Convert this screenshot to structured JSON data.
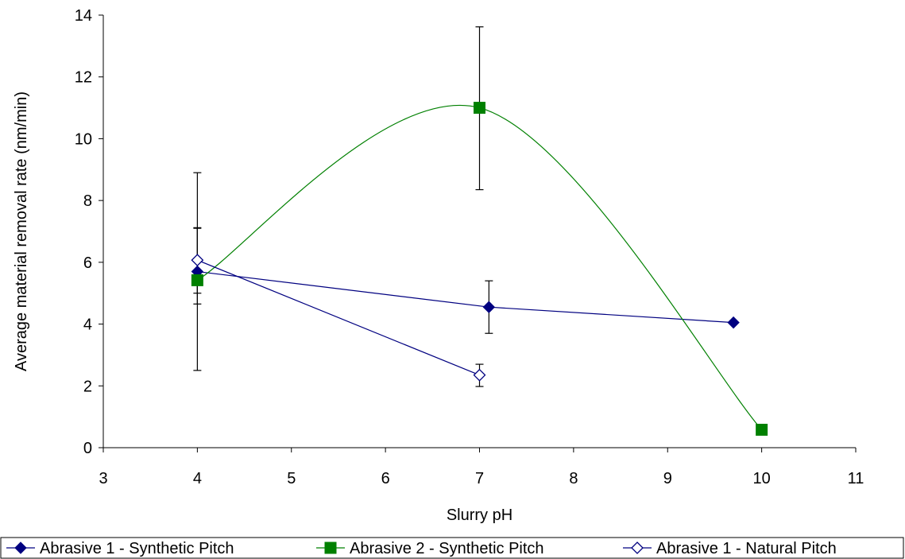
{
  "chart_data": {
    "type": "scatter",
    "title": "",
    "xlabel": "Slurry pH",
    "ylabel": "Average material removal rate (nm/min)",
    "xlim": [
      3,
      11
    ],
    "ylim": [
      0,
      14
    ],
    "xticks": [
      3,
      4,
      5,
      6,
      7,
      8,
      9,
      10,
      11
    ],
    "yticks": [
      0,
      2,
      4,
      6,
      8,
      10,
      12,
      14
    ],
    "grid": false,
    "legend_position": "bottom",
    "series": [
      {
        "name": "Abrasive 1 - Synthetic Pitch",
        "color": "#000080",
        "marker": "diamond-filled",
        "line": "straight",
        "points": [
          {
            "x": 4,
            "y": 5.7,
            "err_low": 4.65,
            "err_high": 7.12
          },
          {
            "x": 7.1,
            "y": 4.55,
            "err_low": 3.7,
            "err_high": 5.4
          },
          {
            "x": 9.7,
            "y": 4.05
          }
        ]
      },
      {
        "name": "Abrasive 2 - Synthetic Pitch",
        "color": "#008000",
        "marker": "square-filled",
        "line": "smooth",
        "points": [
          {
            "x": 4,
            "y": 5.42,
            "err_low": 2.5,
            "err_high": 8.9
          },
          {
            "x": 7,
            "y": 11.0,
            "err_low": 8.35,
            "err_high": 13.62
          },
          {
            "x": 10,
            "y": 0.58
          }
        ]
      },
      {
        "name": "Abrasive 1 - Natural Pitch",
        "color": "#000080",
        "marker": "diamond-open",
        "line": "straight",
        "points": [
          {
            "x": 4,
            "y": 6.07,
            "err_low": 5.0,
            "err_high": 7.1
          },
          {
            "x": 7,
            "y": 2.35,
            "err_low": 1.98,
            "err_high": 2.7
          }
        ]
      }
    ]
  }
}
